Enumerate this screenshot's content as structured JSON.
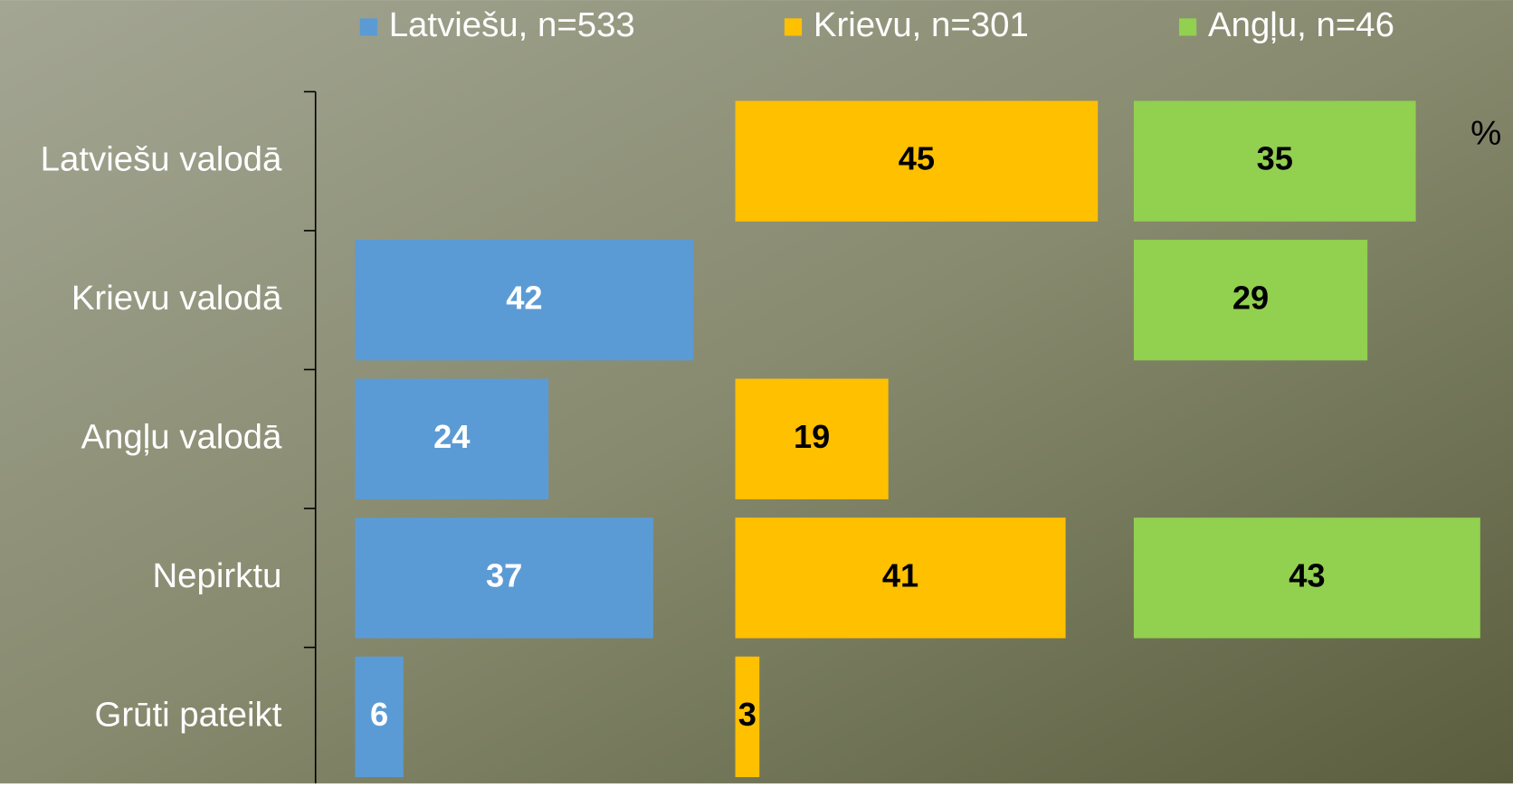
{
  "chart_data": {
    "type": "bar",
    "orientation": "horizontal",
    "layout": "panels",
    "categories": [
      "Latviešu valodā",
      "Krievu valodā",
      "Angļu valodā",
      "Nepirktu",
      "Grūti pateikt"
    ],
    "series": [
      {
        "name": "Latviešu, n=533",
        "color": "#5b9bd5",
        "label_color": "#ffffff",
        "values": [
          null,
          42,
          24,
          37,
          6
        ]
      },
      {
        "name": "Krievu, n=301",
        "color": "#ffc000",
        "label_color": "#000000",
        "values": [
          45,
          null,
          19,
          41,
          3
        ]
      },
      {
        "name": "Angļu, n=46",
        "color": "#92d050",
        "label_color": "#000000",
        "values": [
          35,
          29,
          null,
          43,
          null
        ]
      }
    ],
    "unit_label": "%",
    "legend": "top"
  }
}
